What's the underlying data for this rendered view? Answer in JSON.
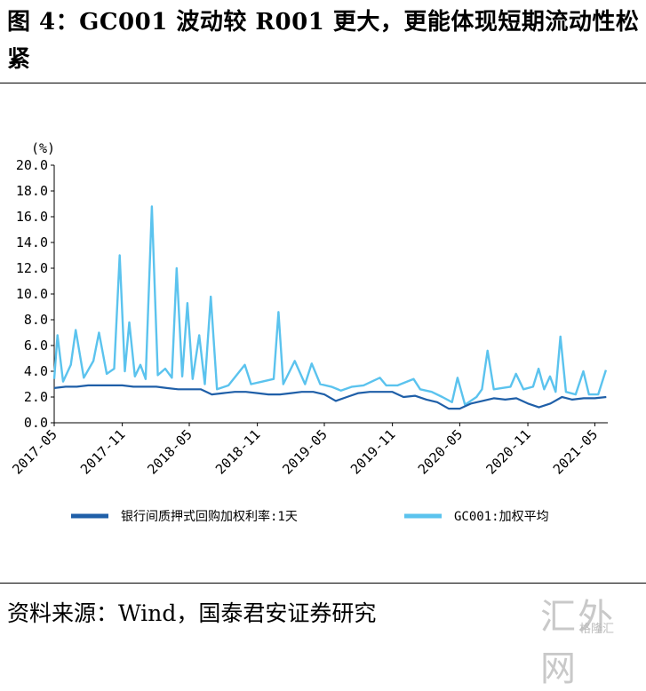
{
  "title": "图 4：GC001 波动较 R001 更大，更能体现短期流动性松紧",
  "source": "资料来源：Wind，国泰君安证券研究",
  "watermark": "汇外网",
  "watermark_small": "格隆汇",
  "chart_data": {
    "type": "line",
    "unit_label": "(%)",
    "ylim": [
      0,
      20
    ],
    "yticks": [
      "0.0",
      "2.0",
      "4.0",
      "6.0",
      "8.0",
      "10.0",
      "12.0",
      "14.0",
      "16.0",
      "18.0",
      "20.0"
    ],
    "xrange": [
      "2017-05",
      "2021-06"
    ],
    "xticks": [
      "2017-05",
      "2017-11",
      "2018-05",
      "2018-11",
      "2019-05",
      "2019-11",
      "2020-05",
      "2020-11",
      "2021-05"
    ],
    "grid": false,
    "legend_position": "bottom",
    "series": [
      {
        "name": "银行间质押式回购加权利率:1天",
        "color": "#1f5fa8",
        "points": [
          [
            "2017-05-01",
            2.7
          ],
          [
            "2017-06-01",
            2.8
          ],
          [
            "2017-07-01",
            2.8
          ],
          [
            "2017-08-01",
            2.9
          ],
          [
            "2017-09-01",
            2.9
          ],
          [
            "2017-10-01",
            2.9
          ],
          [
            "2017-11-01",
            2.9
          ],
          [
            "2017-12-01",
            2.8
          ],
          [
            "2018-01-01",
            2.8
          ],
          [
            "2018-02-01",
            2.8
          ],
          [
            "2018-03-01",
            2.7
          ],
          [
            "2018-04-01",
            2.6
          ],
          [
            "2018-05-01",
            2.6
          ],
          [
            "2018-06-01",
            2.6
          ],
          [
            "2018-07-01",
            2.2
          ],
          [
            "2018-08-01",
            2.3
          ],
          [
            "2018-09-01",
            2.4
          ],
          [
            "2018-10-01",
            2.4
          ],
          [
            "2018-11-01",
            2.3
          ],
          [
            "2018-12-01",
            2.2
          ],
          [
            "2019-01-01",
            2.2
          ],
          [
            "2019-02-01",
            2.3
          ],
          [
            "2019-03-01",
            2.4
          ],
          [
            "2019-04-01",
            2.4
          ],
          [
            "2019-05-01",
            2.2
          ],
          [
            "2019-06-01",
            1.7
          ],
          [
            "2019-07-01",
            2.0
          ],
          [
            "2019-08-01",
            2.3
          ],
          [
            "2019-09-01",
            2.4
          ],
          [
            "2019-10-01",
            2.4
          ],
          [
            "2019-11-01",
            2.4
          ],
          [
            "2019-12-01",
            2.0
          ],
          [
            "2020-01-01",
            2.1
          ],
          [
            "2020-02-01",
            1.8
          ],
          [
            "2020-03-01",
            1.6
          ],
          [
            "2020-04-01",
            1.1
          ],
          [
            "2020-05-01",
            1.1
          ],
          [
            "2020-06-01",
            1.5
          ],
          [
            "2020-07-01",
            1.7
          ],
          [
            "2020-08-01",
            1.9
          ],
          [
            "2020-09-01",
            1.8
          ],
          [
            "2020-10-01",
            1.9
          ],
          [
            "2020-11-01",
            1.5
          ],
          [
            "2020-12-01",
            1.2
          ],
          [
            "2021-01-01",
            1.5
          ],
          [
            "2021-02-01",
            2.0
          ],
          [
            "2021-03-01",
            1.8
          ],
          [
            "2021-04-01",
            1.9
          ],
          [
            "2021-05-01",
            1.9
          ],
          [
            "2021-06-01",
            2.0
          ]
        ]
      },
      {
        "name": "GC001:加权平均",
        "color": "#5bc3ee",
        "points": [
          [
            "2017-05-01",
            3.4
          ],
          [
            "2017-05-10",
            6.8
          ],
          [
            "2017-05-25",
            3.2
          ],
          [
            "2017-06-15",
            4.5
          ],
          [
            "2017-06-28",
            7.2
          ],
          [
            "2017-07-20",
            3.5
          ],
          [
            "2017-08-15",
            4.8
          ],
          [
            "2017-08-30",
            7.0
          ],
          [
            "2017-09-20",
            3.8
          ],
          [
            "2017-10-10",
            4.2
          ],
          [
            "2017-10-25",
            13.0
          ],
          [
            "2017-11-08",
            4.0
          ],
          [
            "2017-11-20",
            7.8
          ],
          [
            "2017-12-05",
            3.6
          ],
          [
            "2017-12-20",
            4.5
          ],
          [
            "2018-01-03",
            3.4
          ],
          [
            "2018-01-20",
            16.8
          ],
          [
            "2018-02-05",
            3.7
          ],
          [
            "2018-02-25",
            4.2
          ],
          [
            "2018-03-15",
            3.5
          ],
          [
            "2018-03-28",
            12.0
          ],
          [
            "2018-04-12",
            3.6
          ],
          [
            "2018-04-26",
            9.3
          ],
          [
            "2018-05-10",
            3.4
          ],
          [
            "2018-05-28",
            6.8
          ],
          [
            "2018-06-12",
            3.0
          ],
          [
            "2018-06-28",
            9.8
          ],
          [
            "2018-07-15",
            2.6
          ],
          [
            "2018-08-15",
            2.9
          ],
          [
            "2018-09-28",
            4.5
          ],
          [
            "2018-10-15",
            3.0
          ],
          [
            "2018-11-15",
            3.2
          ],
          [
            "2018-12-15",
            3.4
          ],
          [
            "2018-12-28",
            8.6
          ],
          [
            "2019-01-10",
            3.0
          ],
          [
            "2019-02-10",
            4.8
          ],
          [
            "2019-03-10",
            3.0
          ],
          [
            "2019-03-28",
            4.6
          ],
          [
            "2019-04-20",
            3.0
          ],
          [
            "2019-05-20",
            2.8
          ],
          [
            "2019-06-15",
            2.5
          ],
          [
            "2019-07-15",
            2.8
          ],
          [
            "2019-08-15",
            2.9
          ],
          [
            "2019-09-28",
            3.5
          ],
          [
            "2019-10-15",
            2.9
          ],
          [
            "2019-11-15",
            2.9
          ],
          [
            "2019-12-28",
            3.4
          ],
          [
            "2020-01-15",
            2.6
          ],
          [
            "2020-02-15",
            2.4
          ],
          [
            "2020-03-15",
            2.0
          ],
          [
            "2020-04-10",
            1.6
          ],
          [
            "2020-04-25",
            3.5
          ],
          [
            "2020-05-15",
            1.4
          ],
          [
            "2020-06-15",
            2.0
          ],
          [
            "2020-06-30",
            2.6
          ],
          [
            "2020-07-15",
            5.6
          ],
          [
            "2020-08-01",
            2.6
          ],
          [
            "2020-09-15",
            2.8
          ],
          [
            "2020-09-30",
            3.8
          ],
          [
            "2020-10-20",
            2.6
          ],
          [
            "2020-11-15",
            2.8
          ],
          [
            "2020-11-30",
            4.2
          ],
          [
            "2020-12-15",
            2.6
          ],
          [
            "2020-12-31",
            3.6
          ],
          [
            "2021-01-15",
            2.4
          ],
          [
            "2021-01-28",
            6.7
          ],
          [
            "2021-02-12",
            2.4
          ],
          [
            "2021-03-10",
            2.2
          ],
          [
            "2021-03-31",
            4.0
          ],
          [
            "2021-04-15",
            2.2
          ],
          [
            "2021-05-10",
            2.2
          ],
          [
            "2021-05-31",
            4.1
          ]
        ]
      }
    ]
  }
}
